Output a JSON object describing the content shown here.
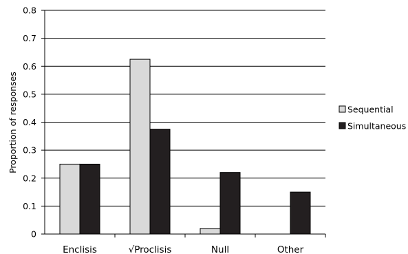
{
  "chart_data": {
    "type": "bar",
    "title": "",
    "xlabel": "",
    "ylabel": "Proportion of responses",
    "ylim": [
      0,
      0.8
    ],
    "yticks": [
      "0",
      "0.1",
      "0.2",
      "0.3",
      "0.4",
      "0.5",
      "0.6",
      "0.7",
      "0.8"
    ],
    "grid": true,
    "legend_position": "right",
    "categories": [
      "Enclisis",
      "√Proclisis",
      "Null",
      "Other"
    ],
    "series": [
      {
        "name": "Sequential",
        "color": "#d9d9d9",
        "values": [
          0.25,
          0.625,
          0.02,
          0
        ]
      },
      {
        "name": "Simultaneous",
        "color": "#231f20",
        "values": [
          0.25,
          0.375,
          0.22,
          0.15
        ]
      }
    ]
  }
}
